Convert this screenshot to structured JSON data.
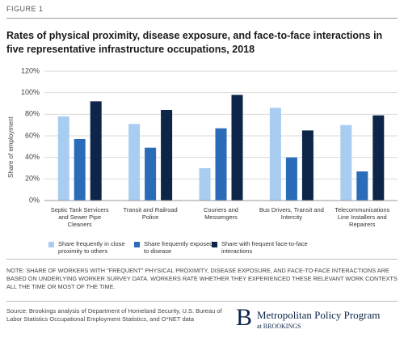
{
  "figure_label": "FIGURE 1",
  "chart_data": {
    "type": "bar",
    "title": "Rates of physical proximity, disease exposure, and face-to-face interactions in five representative infrastructure occupations, 2018",
    "ylabel": "Share of employment",
    "categories": [
      "Septic Tank Servicers and Sewer Pipe Cleaners",
      "Transit and Railroad Police",
      "Couriers and Messengers",
      "Bus Drivers, Transit and Intercity",
      "Telecommunications Line Installers and Repairers"
    ],
    "series": [
      {
        "name": "Share frequently in close proximity to others",
        "color": "#a9cdf0",
        "values": [
          78,
          71,
          30,
          86,
          70
        ]
      },
      {
        "name": "Share frequently exposed to disease",
        "color": "#2a6cb8",
        "values": [
          57,
          49,
          67,
          40,
          27
        ]
      },
      {
        "name": "Share with frequent face-to-face interactions",
        "color": "#0c2548",
        "values": [
          92,
          84,
          98,
          65,
          79
        ]
      }
    ],
    "ylim": [
      0,
      120
    ],
    "yticks": [
      {
        "value": 0,
        "label": "0%"
      },
      {
        "value": 20,
        "label": "20%"
      },
      {
        "value": 40,
        "label": "40%"
      },
      {
        "value": 60,
        "label": "60%"
      },
      {
        "value": 80,
        "label": "80%"
      },
      {
        "value": 100,
        "label": "100%"
      },
      {
        "value": 120,
        "label": "120%"
      }
    ],
    "grid": true
  },
  "note": "NOTE: SHARE OF WORKERS WITH \"FREQUENT\" PHYSICAL PROXIMITY, DISEASE EXPOSURE, AND FACE-TO-FACE INTERACTIONS ARE BASED ON UNDERLYING WORKER SURVEY DATA. WORKERS RATE WHETHER THEY EXPERIENCED THESE RELEVANT WORK CONTEXTS ALL THE TIME OR MOST OF THE TIME.",
  "source": "Source: Brookings analysis of Department of Homeland Security, U.S. Bureau of Labor Statistics Occupational Employment Statistics, and O*NET data",
  "logo": {
    "mark": "B",
    "name": "Metropolitan Policy Program",
    "sub": "at BROOKINGS"
  }
}
